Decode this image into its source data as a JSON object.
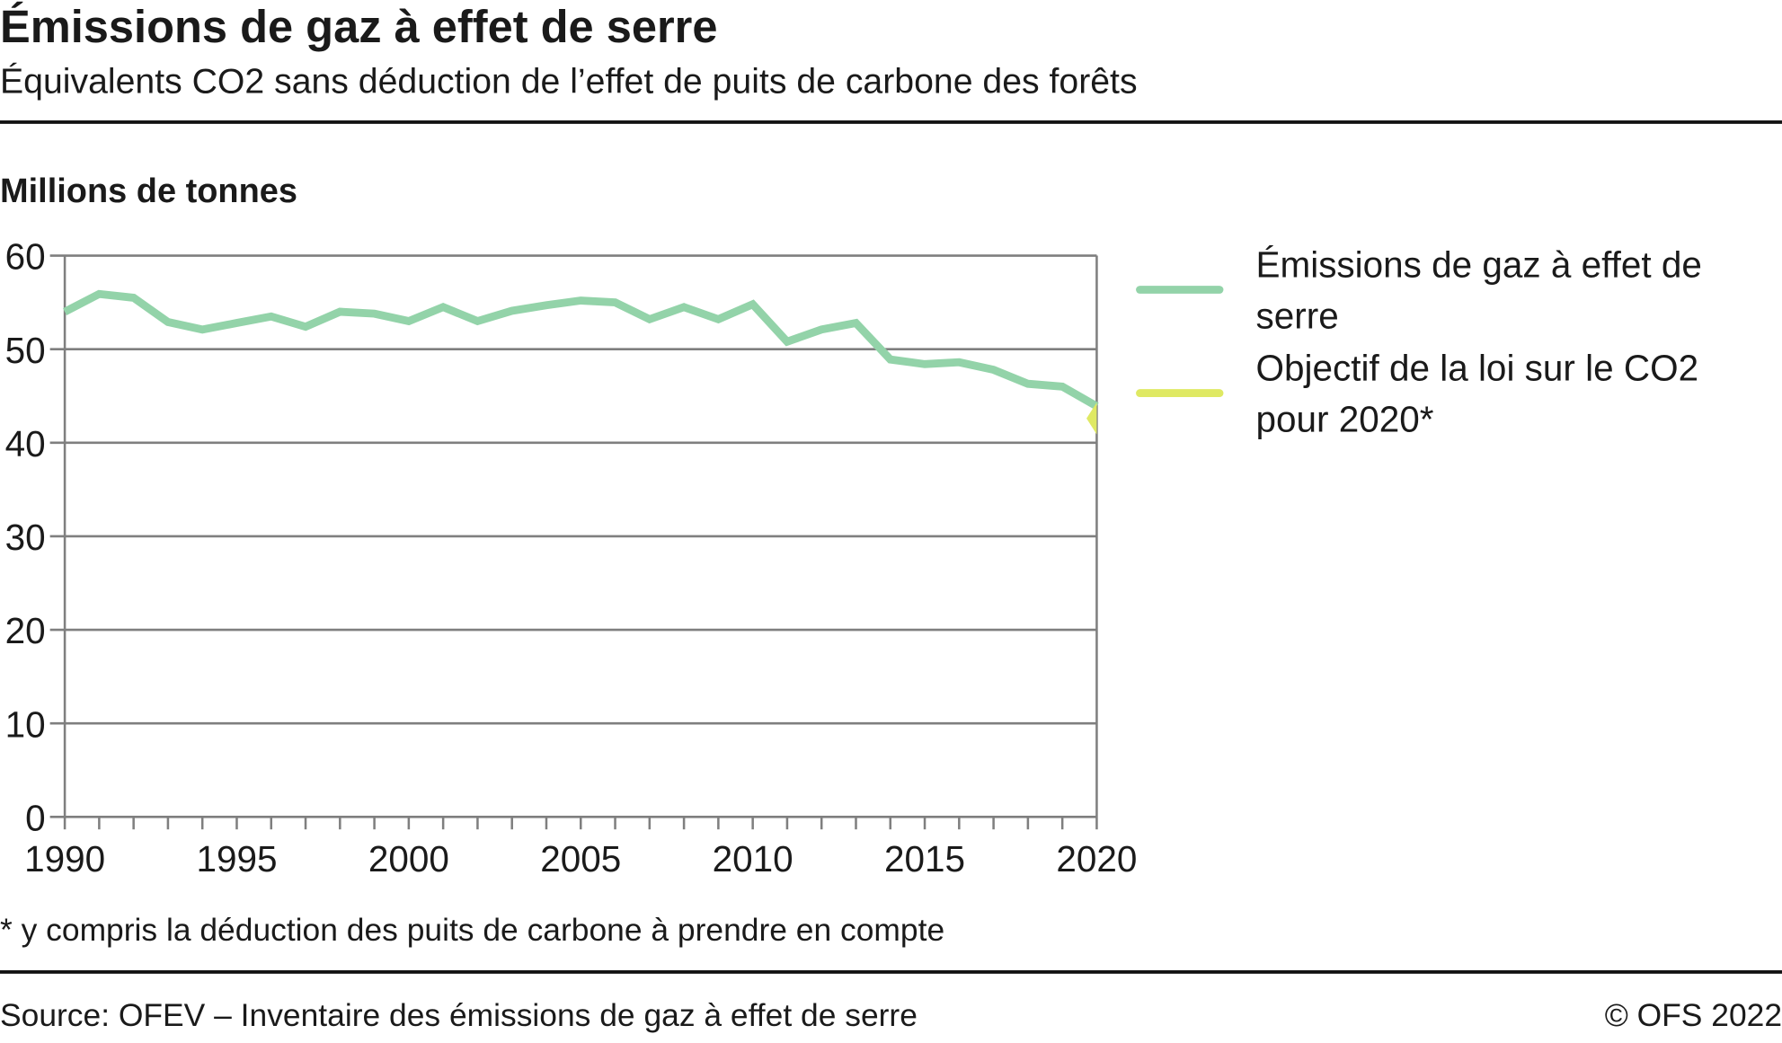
{
  "title": "Émissions de gaz à effet de serre",
  "subtitle": "Équivalents CO2 sans déduction de l’effet de puits de carbone des forêts",
  "footnote": "*   y compris la déduction des puits de carbone à prendre en compte",
  "source": "Source: OFEV – Inventaire des émissions de gaz à effet de serre",
  "copyright": "© OFS 2022",
  "colors": {
    "emissions": "#93d3a9",
    "target": "#dfe963",
    "grid": "#7f7f7f"
  },
  "chart_data": {
    "type": "line",
    "title": "Émissions de gaz à effet de serre",
    "ylabel": "Millions de tonnes",
    "xlabel": "",
    "ylim": [
      0,
      60
    ],
    "xlim": [
      1990,
      2020
    ],
    "yticks": [
      "0",
      "10",
      "20",
      "30",
      "40",
      "50",
      "60"
    ],
    "xticks": [
      "1990",
      "1995",
      "2000",
      "2005",
      "2010",
      "2015",
      "2020"
    ],
    "grid": true,
    "legend_position": "right",
    "series": [
      {
        "name": "Émissions de gaz à effet de serre",
        "x": [
          1990,
          1991,
          1992,
          1993,
          1994,
          1995,
          1996,
          1997,
          1998,
          1999,
          2000,
          2001,
          2002,
          2003,
          2004,
          2005,
          2006,
          2007,
          2008,
          2009,
          2010,
          2011,
          2012,
          2013,
          2014,
          2015,
          2016,
          2017,
          2018,
          2019,
          2020
        ],
        "values": [
          54.0,
          55.9,
          55.5,
          52.9,
          52.1,
          52.8,
          53.5,
          52.4,
          54.0,
          53.8,
          53.0,
          54.5,
          53.0,
          54.1,
          54.7,
          55.2,
          55.0,
          53.2,
          54.5,
          53.2,
          54.8,
          50.8,
          52.1,
          52.8,
          48.9,
          48.4,
          48.6,
          47.8,
          46.3,
          46.0,
          43.9
        ]
      },
      {
        "name": "Objectif de la loi sur le CO2 pour 2020*",
        "x": [
          2020
        ],
        "values": [
          42.6
        ]
      }
    ]
  }
}
